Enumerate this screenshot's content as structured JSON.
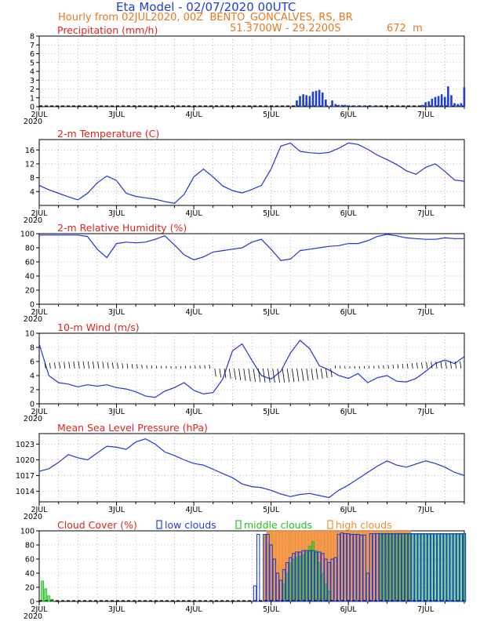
{
  "header": {
    "title": "Eta Model - 02/07/2020 00UTC",
    "subtitle": "Hourly from 02JUL2020, 00Z  BENTO_GONCALVES, RS, BR",
    "coords": "51.3700W - 29.2200S",
    "altitude": "672  m"
  },
  "colors": {
    "title": "#1f3fd6",
    "subtitle": "#e8781e",
    "panel_title": "#e0231c",
    "line": "#2233dd",
    "low": "#1f3fd6",
    "middle": "#20c020",
    "high": "#f08a30",
    "axis": "#000000"
  },
  "time_axis": {
    "labels": [
      "2JUL",
      "3JUL",
      "4JUL",
      "5JUL",
      "6JUL",
      "7JUL"
    ],
    "year": "2020",
    "range_hours": [
      0,
      132
    ]
  },
  "chart_data": [
    {
      "type": "bar",
      "title": "Precipitation (mm/h)",
      "ylim": [
        0,
        8
      ],
      "yticks": [
        "0",
        "1",
        "2",
        "3",
        "4",
        "5",
        "6",
        "7",
        "8"
      ],
      "x": [
        80,
        81,
        82,
        83,
        84,
        85,
        86,
        87,
        88,
        89,
        91,
        92,
        93,
        94,
        95,
        96,
        97,
        98,
        99,
        100,
        101,
        102,
        103,
        104,
        105,
        119,
        120,
        121,
        122,
        123,
        124,
        125,
        126,
        127,
        128,
        129,
        130,
        131,
        132
      ],
      "values": [
        0.7,
        1.2,
        1.4,
        1.3,
        1.2,
        1.7,
        1.8,
        1.9,
        1.6,
        0.8,
        0.7,
        0.3,
        0.2,
        0.2,
        0.2,
        0.1,
        0.1,
        0.1,
        0.1,
        0.1,
        0.1,
        0.1,
        0.1,
        0.1,
        0.1,
        0.2,
        0.5,
        0.6,
        0.9,
        1.1,
        1.2,
        1.4,
        1.1,
        2.3,
        1.3,
        0.4,
        0.3,
        0.4,
        2.2
      ]
    },
    {
      "type": "line",
      "title": "2-m Temperature (C)",
      "ylim": [
        0,
        19
      ],
      "yticks": [
        "4",
        "8",
        "12",
        "16"
      ],
      "x": [
        0,
        3,
        6,
        9,
        12,
        15,
        18,
        21,
        24,
        27,
        30,
        33,
        36,
        39,
        42,
        45,
        48,
        51,
        54,
        57,
        60,
        63,
        66,
        69,
        72,
        75,
        78,
        81,
        84,
        87,
        90,
        93,
        96,
        99,
        102,
        105,
        108,
        111,
        114,
        117,
        120,
        123,
        126,
        129,
        132
      ],
      "values": [
        5.8,
        4.5,
        3.5,
        2.5,
        1.6,
        3.5,
        6.5,
        8.5,
        7.2,
        3.5,
        2.6,
        2.2,
        1.8,
        1.1,
        0.6,
        3.2,
        8.2,
        10.5,
        8.2,
        5.6,
        4.3,
        3.6,
        4.6,
        5.8,
        10.5,
        17.1,
        18.0,
        15.6,
        15.2,
        15.0,
        15.3,
        16.5,
        18.0,
        17.6,
        16.2,
        14.5,
        13.2,
        11.8,
        10.0,
        9.0,
        11.0,
        12.0,
        9.8,
        7.3,
        7.0
      ]
    },
    {
      "type": "line",
      "title": "2-m Relative Humidity (%)",
      "ylim": [
        0,
        100
      ],
      "yticks": [
        "0",
        "20",
        "40",
        "60",
        "80",
        "100"
      ],
      "x": [
        0,
        3,
        6,
        9,
        12,
        15,
        18,
        21,
        24,
        27,
        30,
        33,
        36,
        39,
        42,
        45,
        48,
        51,
        54,
        57,
        60,
        63,
        66,
        69,
        72,
        75,
        78,
        81,
        84,
        87,
        90,
        93,
        96,
        99,
        102,
        105,
        108,
        111,
        114,
        117,
        120,
        123,
        126,
        129,
        132
      ],
      "values": [
        98,
        98,
        98,
        98,
        98,
        96,
        78,
        66,
        86,
        88,
        87,
        88,
        92,
        97,
        84,
        70,
        63,
        67,
        74,
        76,
        78,
        80,
        88,
        92,
        78,
        62,
        64,
        76,
        78,
        80,
        82,
        83,
        86,
        86,
        90,
        96,
        99,
        97,
        94,
        93,
        92,
        92,
        94,
        93,
        93
      ]
    },
    {
      "type": "line",
      "title": "10-m Wind (m/s)",
      "ylim": [
        0,
        10
      ],
      "yticks": [
        "0",
        "2",
        "4",
        "6",
        "8",
        "10"
      ],
      "x": [
        0,
        3,
        6,
        9,
        12,
        15,
        18,
        21,
        24,
        27,
        30,
        33,
        36,
        39,
        42,
        45,
        48,
        51,
        54,
        57,
        60,
        63,
        66,
        69,
        72,
        75,
        78,
        81,
        84,
        87,
        90,
        93,
        96,
        99,
        102,
        105,
        108,
        111,
        114,
        117,
        120,
        123,
        126,
        129,
        132
      ],
      "values": [
        8.5,
        4.0,
        3.0,
        2.8,
        2.4,
        2.7,
        2.5,
        2.7,
        2.3,
        2.1,
        1.7,
        1.1,
        0.9,
        1.8,
        2.3,
        3.0,
        1.9,
        1.4,
        1.6,
        3.5,
        7.5,
        8.5,
        6.2,
        4.0,
        3.5,
        4.6,
        7.2,
        9.0,
        7.8,
        5.4,
        4.8,
        4.0,
        3.6,
        4.3,
        3.0,
        3.7,
        4.0,
        3.2,
        3.1,
        3.6,
        4.6,
        5.7,
        6.2,
        5.7,
        6.7
      ]
    },
    {
      "type": "line",
      "title": "Mean Sea Level Pressure (hPa)",
      "ylim": [
        1012,
        1025
      ],
      "yticks": [
        "1014",
        "1017",
        "1020",
        "1023"
      ],
      "x": [
        0,
        3,
        6,
        9,
        12,
        15,
        18,
        21,
        24,
        27,
        30,
        33,
        36,
        39,
        42,
        45,
        48,
        51,
        54,
        57,
        60,
        63,
        66,
        69,
        72,
        75,
        78,
        81,
        84,
        87,
        90,
        93,
        96,
        99,
        102,
        105,
        108,
        111,
        114,
        117,
        120,
        123,
        126,
        129,
        132
      ],
      "values": [
        1017.8,
        1018.3,
        1019.5,
        1021.0,
        1020.4,
        1020.0,
        1021.3,
        1022.6,
        1022.4,
        1022.0,
        1023.4,
        1024.0,
        1023.0,
        1021.5,
        1020.8,
        1020.0,
        1019.3,
        1019.0,
        1018.2,
        1017.4,
        1016.6,
        1015.4,
        1014.9,
        1014.7,
        1014.2,
        1013.5,
        1013.0,
        1013.4,
        1013.6,
        1013.2,
        1012.8,
        1014.2,
        1015.2,
        1016.4,
        1017.6,
        1018.8,
        1019.8,
        1019.0,
        1018.6,
        1019.2,
        1019.8,
        1019.3,
        1018.6,
        1017.6,
        1017.0
      ]
    },
    {
      "type": "bar",
      "title": "Cloud Cover (%)",
      "ylim": [
        0,
        100
      ],
      "yticks": [
        "0",
        "20",
        "40",
        "60",
        "80",
        "100"
      ],
      "legend": [
        "low clouds",
        "middle clouds",
        "high clouds"
      ],
      "series": [
        {
          "name": "low clouds",
          "x": [
            67,
            68,
            70,
            71,
            72,
            73,
            74,
            75,
            76,
            77,
            78,
            79,
            80,
            81,
            82,
            83,
            84,
            85,
            86,
            87,
            88,
            89,
            90,
            91,
            92,
            93,
            94,
            95,
            96,
            97,
            98,
            99,
            100,
            101,
            102,
            103,
            104,
            105,
            106,
            107,
            108,
            109,
            110,
            111,
            112,
            113,
            114,
            115,
            116,
            117,
            118,
            119,
            120,
            121,
            122,
            123,
            124,
            125,
            126,
            127,
            128,
            129,
            130,
            131,
            132
          ],
          "values": [
            22,
            95,
            95,
            95,
            80,
            60,
            40,
            30,
            45,
            55,
            62,
            68,
            70,
            70,
            72,
            72,
            72,
            72,
            70,
            70,
            68,
            60,
            55,
            60,
            62,
            95,
            97,
            96,
            96,
            95,
            95,
            95,
            94,
            94,
            40,
            96,
            96,
            96,
            96,
            96,
            96,
            96,
            96,
            96,
            96,
            96,
            96,
            96,
            96,
            96,
            96,
            96,
            96,
            96,
            96,
            96,
            96,
            96,
            96,
            96,
            96,
            96,
            96,
            96,
            96
          ]
        },
        {
          "name": "middle clouds",
          "x": [
            1,
            2,
            3,
            4,
            76,
            77,
            78,
            79,
            80,
            81,
            82,
            83,
            84,
            85,
            86,
            87,
            88,
            89,
            90,
            106,
            107,
            108,
            109,
            110,
            111,
            112,
            113,
            114,
            115,
            116,
            117,
            118,
            119,
            120,
            121,
            122,
            123,
            124,
            125,
            126,
            127,
            128,
            129,
            130,
            131,
            132
          ],
          "values": [
            29,
            18,
            8,
            3,
            25,
            40,
            55,
            60,
            62,
            64,
            66,
            70,
            78,
            85,
            72,
            55,
            40,
            25,
            15,
            95,
            95,
            95,
            95,
            95,
            95,
            95,
            95,
            95,
            95,
            95,
            95,
            95,
            95,
            95,
            95,
            95,
            95,
            95,
            95,
            95,
            95,
            95,
            95,
            95,
            95,
            95
          ]
        },
        {
          "name": "high clouds",
          "x": [
            70,
            71,
            72,
            73,
            74,
            75,
            76,
            77,
            78,
            79,
            80,
            81,
            82,
            83,
            84,
            85,
            86,
            87,
            88,
            89,
            90,
            91,
            92,
            93,
            94,
            95,
            96,
            97,
            98,
            99,
            100,
            101,
            102,
            103,
            104,
            105,
            106,
            107,
            108,
            109,
            110,
            111,
            112,
            113,
            114,
            115
          ],
          "values": [
            95,
            100,
            100,
            100,
            100,
            100,
            100,
            100,
            100,
            100,
            100,
            100,
            100,
            100,
            100,
            100,
            100,
            100,
            100,
            100,
            100,
            100,
            100,
            100,
            100,
            100,
            100,
            100,
            100,
            100,
            100,
            100,
            100,
            100,
            100,
            100,
            100,
            100,
            100,
            100,
            100,
            100,
            100,
            100,
            100,
            100
          ]
        }
      ]
    }
  ]
}
